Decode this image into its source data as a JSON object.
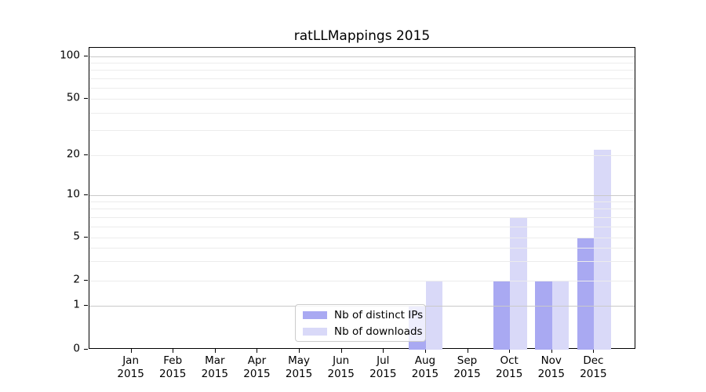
{
  "title": "ratLLMappings 2015",
  "legend": {
    "position": "lower center",
    "items": [
      {
        "label": "Nb of distinct IPs",
        "series_key": "ips"
      },
      {
        "label": "Nb of downloads",
        "series_key": "downloads"
      }
    ]
  },
  "axes": {
    "y_tick_labels": [
      "0",
      "1",
      "2",
      "5",
      "10",
      "20",
      "50",
      "100"
    ],
    "x_year_label": "2015"
  },
  "colors": {
    "ips_bar": "#a9a9f2",
    "downloads_bar": "#d9d9f8",
    "major_grid": "#c9c9c9",
    "minor_grid": "#ececec",
    "axis_spine": "#000000",
    "legend_border": "#cccccc"
  },
  "chart_data": {
    "type": "bar",
    "title": "ratLLMappings 2015",
    "categories": [
      "Jan",
      "Feb",
      "Mar",
      "Apr",
      "May",
      "Jun",
      "Jul",
      "Aug",
      "Sep",
      "Oct",
      "Nov",
      "Dec"
    ],
    "year": "2015",
    "series": [
      {
        "name": "Nb of distinct IPs",
        "color": "#a9a9f2",
        "values": [
          0,
          0,
          0,
          0,
          0,
          0,
          0,
          1,
          0,
          2,
          2,
          5
        ]
      },
      {
        "name": "Nb of downloads",
        "color": "#d9d9f8",
        "values": [
          0,
          0,
          0,
          0,
          0,
          0,
          0,
          2,
          0,
          7,
          2,
          22
        ]
      }
    ],
    "ylabel": "",
    "xlabel": "",
    "yscale": "log-like",
    "yticks": [
      0,
      1,
      2,
      5,
      10,
      20,
      50,
      100
    ],
    "major_gridlines": [
      1,
      10,
      100
    ],
    "minor_gridlines": [
      2,
      3,
      4,
      5,
      6,
      7,
      8,
      9,
      20,
      30,
      40,
      50,
      60,
      70,
      80,
      90
    ],
    "ylim": [
      0,
      115
    ],
    "grid": true,
    "legend_position": "lower center"
  }
}
